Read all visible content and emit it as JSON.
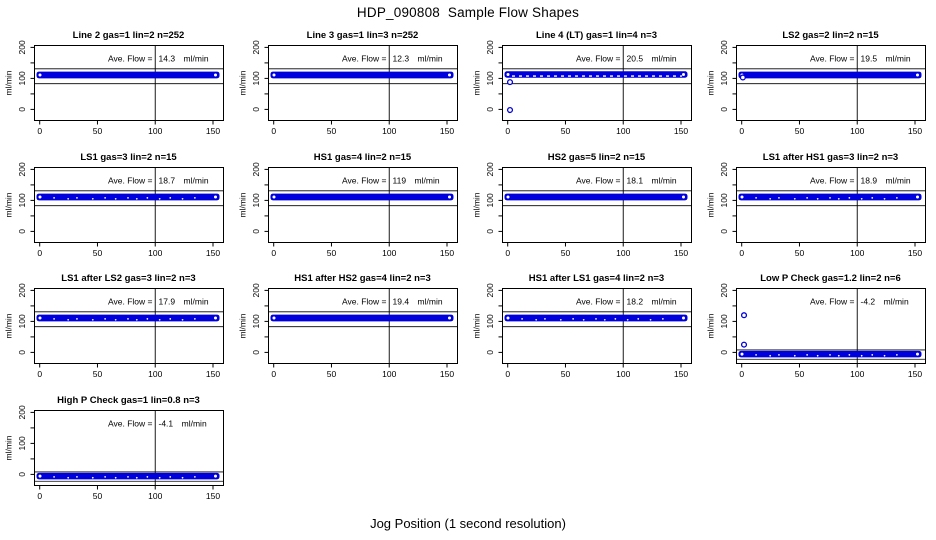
{
  "header": {
    "title": "HDP_090808  Sample Flow Shapes"
  },
  "footer": {
    "xlabel": "Jog Position (1 second resolution)"
  },
  "colors": {
    "point_blue": "#0000dd",
    "axis_black": "#000000",
    "background": "#ffffff"
  },
  "chart_data": {
    "type": "scatter",
    "title": "HDP_090808  Sample Flow Shapes",
    "xlabel": "Jog Position (1 second resolution)",
    "ylabel": "ml/min",
    "layout": {
      "rows": 4,
      "cols": 4,
      "panel_count": 13,
      "grid_on": false
    },
    "xlim": [
      -5,
      159
    ],
    "ylim": [
      -35,
      210
    ],
    "xticks": [
      0,
      50,
      100,
      150
    ],
    "yticks": [
      0,
      50,
      100,
      150,
      200
    ],
    "ytick_labels_shown": [
      "0",
      "100",
      "200"
    ],
    "vline_x": 100,
    "ave_flow_label": "Ave. Flow =",
    "unit": "ml/min",
    "panels": [
      {
        "title": "Line 2 gas=1 lin=2 n=252",
        "gas": "1",
        "lin": "2",
        "n": "252",
        "ave_flow_display": "14.3",
        "band": {
          "lo": 100,
          "hi": 122
        },
        "ref_lines": [
          131,
          83
        ],
        "outliers": [],
        "speckled": false,
        "dashed_band_bottom": false
      },
      {
        "title": "Line 3 gas=1 lin=3 n=252",
        "gas": "1",
        "lin": "3",
        "n": "252",
        "ave_flow_display": "12.3",
        "band": {
          "lo": 100,
          "hi": 122
        },
        "ref_lines": [
          131,
          83
        ],
        "outliers": [],
        "speckled": false,
        "dashed_band_bottom": false
      },
      {
        "title": "Line 4 (LT) gas=1 lin=4 n=3",
        "gas": "1",
        "lin": "4",
        "n": "3",
        "ave_flow_display": "20.5",
        "band": {
          "lo": 102,
          "hi": 123
        },
        "ref_lines": [
          131,
          83
        ],
        "outliers": [
          [
            2,
            88
          ],
          [
            2,
            -2
          ]
        ],
        "speckled": false,
        "dashed_band_bottom": true
      },
      {
        "title": "LS2 gas=2 lin=2 n=15",
        "gas": "2",
        "lin": "2",
        "n": "15",
        "ave_flow_display": "19.5",
        "band": {
          "lo": 100,
          "hi": 122
        },
        "ref_lines": [
          131,
          83
        ],
        "outliers": [
          [
            1,
            103
          ]
        ],
        "speckled": false,
        "dashed_band_bottom": false
      },
      {
        "title": "LS1 gas=3 lin=2 n=15",
        "gas": "3",
        "lin": "2",
        "n": "15",
        "ave_flow_display": "18.7",
        "band": {
          "lo": 100,
          "hi": 122
        },
        "ref_lines": [
          131,
          83
        ],
        "outliers": [],
        "speckled": true,
        "dashed_band_bottom": false
      },
      {
        "title": "HS1 gas=4 lin=2 n=15",
        "gas": "4",
        "lin": "2",
        "n": "15",
        "ave_flow_display": "119",
        "band": {
          "lo": 100,
          "hi": 122
        },
        "ref_lines": [
          131,
          83
        ],
        "outliers": [],
        "speckled": false,
        "dashed_band_bottom": false
      },
      {
        "title": "HS2 gas=5 lin=2 n=15",
        "gas": "5",
        "lin": "2",
        "n": "15",
        "ave_flow_display": "18.1",
        "band": {
          "lo": 100,
          "hi": 122
        },
        "ref_lines": [
          131,
          83
        ],
        "outliers": [],
        "speckled": false,
        "dashed_band_bottom": false
      },
      {
        "title": "LS1 after HS1 gas=3 lin=2 n=3",
        "gas": "3",
        "lin": "2",
        "n": "3",
        "ave_flow_display": "18.9",
        "band": {
          "lo": 100,
          "hi": 122
        },
        "ref_lines": [
          131,
          83
        ],
        "outliers": [],
        "speckled": true,
        "dashed_band_bottom": false
      },
      {
        "title": "LS1 after LS2 gas=3 lin=2 n=3",
        "gas": "3",
        "lin": "2",
        "n": "3",
        "ave_flow_display": "17.9",
        "band": {
          "lo": 100,
          "hi": 122
        },
        "ref_lines": [
          131,
          83
        ],
        "outliers": [],
        "speckled": true,
        "dashed_band_bottom": false
      },
      {
        "title": "HS1 after HS2 gas=4 lin=2 n=3",
        "gas": "4",
        "lin": "2",
        "n": "3",
        "ave_flow_display": "19.4",
        "band": {
          "lo": 100,
          "hi": 122
        },
        "ref_lines": [
          131,
          83
        ],
        "outliers": [],
        "speckled": false,
        "dashed_band_bottom": false
      },
      {
        "title": "HS1 after LS1 gas=4 lin=2 n=3",
        "gas": "4",
        "lin": "2",
        "n": "3",
        "ave_flow_display": "18.2",
        "band": {
          "lo": 100,
          "hi": 122
        },
        "ref_lines": [
          131,
          83
        ],
        "outliers": [],
        "speckled": true,
        "dashed_band_bottom": false
      },
      {
        "title": "Low P Check gas=1.2 lin=2 n=6",
        "gas": "1.2",
        "lin": "2",
        "n": "6",
        "ave_flow_display": "-4.2",
        "band": {
          "lo": -16,
          "hi": 5
        },
        "ref_lines": [
          8,
          -22
        ],
        "outliers": [
          [
            2,
            120
          ],
          [
            2,
            25
          ]
        ],
        "speckled": true,
        "dashed_band_bottom": false
      },
      {
        "title": "High P Check gas=1 lin=0.8 n=3",
        "gas": "1",
        "lin": "0.8",
        "n": "3",
        "ave_flow_display": "-4.1",
        "band": {
          "lo": -16,
          "hi": 5
        },
        "ref_lines": [
          8,
          -22
        ],
        "outliers": [],
        "speckled": true,
        "dashed_band_bottom": false
      }
    ]
  }
}
